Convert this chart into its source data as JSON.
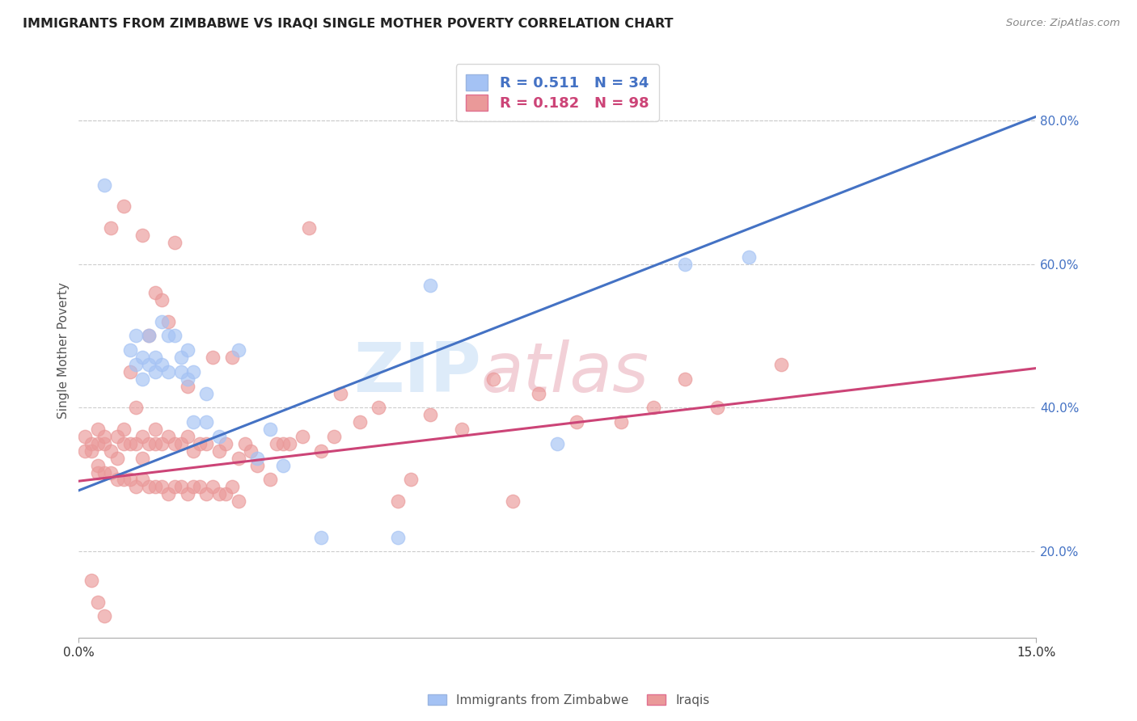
{
  "title": "IMMIGRANTS FROM ZIMBABWE VS IRAQI SINGLE MOTHER POVERTY CORRELATION CHART",
  "source": "Source: ZipAtlas.com",
  "ylabel": "Single Mother Poverty",
  "xlim": [
    0.0,
    0.15
  ],
  "ylim": [
    0.08,
    0.88
  ],
  "ytick_labels_right": [
    "20.0%",
    "40.0%",
    "60.0%",
    "80.0%"
  ],
  "ytick_positions_right": [
    0.2,
    0.4,
    0.6,
    0.8
  ],
  "blue_color": "#a4c2f4",
  "pink_color": "#ea9999",
  "blue_line_color": "#4472c4",
  "pink_line_color": "#cc4477",
  "legend_blue_R": "0.511",
  "legend_blue_N": "34",
  "legend_pink_R": "0.182",
  "legend_pink_N": "98",
  "legend_label_blue": "Immigrants from Zimbabwe",
  "legend_label_pink": "Iraqis",
  "watermark_zip": "ZIP",
  "watermark_atlas": "atlas",
  "blue_line_x0": 0.0,
  "blue_line_y0": 0.285,
  "blue_line_x1": 0.15,
  "blue_line_y1": 0.805,
  "pink_line_x0": 0.0,
  "pink_line_y0": 0.298,
  "pink_line_x1": 0.15,
  "pink_line_y1": 0.455,
  "blue_scatter_x": [
    0.004,
    0.008,
    0.009,
    0.009,
    0.01,
    0.01,
    0.011,
    0.011,
    0.012,
    0.012,
    0.013,
    0.013,
    0.014,
    0.014,
    0.015,
    0.016,
    0.016,
    0.017,
    0.017,
    0.018,
    0.018,
    0.02,
    0.02,
    0.022,
    0.025,
    0.028,
    0.03,
    0.032,
    0.038,
    0.05,
    0.055,
    0.075,
    0.095,
    0.105
  ],
  "blue_scatter_y": [
    0.71,
    0.48,
    0.5,
    0.46,
    0.47,
    0.44,
    0.46,
    0.5,
    0.47,
    0.45,
    0.52,
    0.46,
    0.5,
    0.45,
    0.5,
    0.47,
    0.45,
    0.48,
    0.44,
    0.45,
    0.38,
    0.42,
    0.38,
    0.36,
    0.48,
    0.33,
    0.37,
    0.32,
    0.22,
    0.22,
    0.57,
    0.35,
    0.6,
    0.61
  ],
  "pink_scatter_x": [
    0.001,
    0.001,
    0.002,
    0.002,
    0.003,
    0.003,
    0.003,
    0.004,
    0.004,
    0.005,
    0.005,
    0.006,
    0.006,
    0.007,
    0.007,
    0.007,
    0.008,
    0.008,
    0.009,
    0.009,
    0.01,
    0.01,
    0.01,
    0.011,
    0.011,
    0.012,
    0.012,
    0.012,
    0.013,
    0.013,
    0.014,
    0.014,
    0.015,
    0.015,
    0.016,
    0.017,
    0.017,
    0.018,
    0.019,
    0.02,
    0.021,
    0.022,
    0.023,
    0.024,
    0.025,
    0.026,
    0.027,
    0.028,
    0.03,
    0.031,
    0.032,
    0.033,
    0.035,
    0.036,
    0.038,
    0.04,
    0.041,
    0.044,
    0.047,
    0.05,
    0.052,
    0.055,
    0.06,
    0.065,
    0.068,
    0.072,
    0.078,
    0.085,
    0.09,
    0.095,
    0.1,
    0.11,
    0.003,
    0.004,
    0.005,
    0.006,
    0.007,
    0.008,
    0.009,
    0.01,
    0.011,
    0.012,
    0.013,
    0.014,
    0.015,
    0.016,
    0.017,
    0.018,
    0.019,
    0.02,
    0.021,
    0.022,
    0.023,
    0.024,
    0.025,
    0.002,
    0.003,
    0.004
  ],
  "pink_scatter_y": [
    0.34,
    0.36,
    0.34,
    0.35,
    0.35,
    0.37,
    0.32,
    0.35,
    0.36,
    0.34,
    0.65,
    0.33,
    0.36,
    0.35,
    0.37,
    0.68,
    0.35,
    0.45,
    0.35,
    0.4,
    0.33,
    0.36,
    0.64,
    0.35,
    0.5,
    0.35,
    0.56,
    0.37,
    0.35,
    0.55,
    0.36,
    0.52,
    0.63,
    0.35,
    0.35,
    0.36,
    0.43,
    0.34,
    0.35,
    0.35,
    0.47,
    0.34,
    0.35,
    0.47,
    0.33,
    0.35,
    0.34,
    0.32,
    0.3,
    0.35,
    0.35,
    0.35,
    0.36,
    0.65,
    0.34,
    0.36,
    0.42,
    0.38,
    0.4,
    0.27,
    0.3,
    0.39,
    0.37,
    0.44,
    0.27,
    0.42,
    0.38,
    0.38,
    0.4,
    0.44,
    0.4,
    0.46,
    0.31,
    0.31,
    0.31,
    0.3,
    0.3,
    0.3,
    0.29,
    0.3,
    0.29,
    0.29,
    0.29,
    0.28,
    0.29,
    0.29,
    0.28,
    0.29,
    0.29,
    0.28,
    0.29,
    0.28,
    0.28,
    0.29,
    0.27,
    0.16,
    0.13,
    0.11
  ],
  "grid_color": "#cccccc",
  "spine_color": "#aaaaaa"
}
